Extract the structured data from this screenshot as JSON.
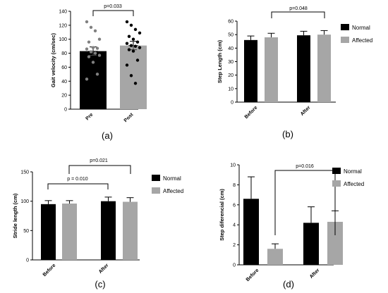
{
  "chart_data": [
    {
      "panel": "(a)",
      "type": "bar",
      "ylabel": "Gait velocity (cm/sec)",
      "ylim": [
        0,
        140
      ],
      "yticks": [
        "0",
        "20",
        "40",
        "60",
        "80",
        "100",
        "120",
        "140"
      ],
      "categories": [
        "Pre",
        "Post"
      ],
      "values": [
        83,
        91
      ],
      "errors": [
        6,
        6
      ],
      "bar_colors": [
        "#000000",
        "#a6a6a6"
      ],
      "points": [
        [
          125,
          117,
          112,
          100,
          96,
          88,
          87,
          86,
          82,
          80,
          77,
          75,
          67,
          50,
          43
        ],
        [
          125,
          120,
          114,
          109,
          104,
          100,
          96,
          94,
          91,
          90,
          88,
          85,
          83,
          70,
          63,
          48,
          37
        ]
      ],
      "point_colors": [
        "#808080",
        "#000000"
      ],
      "annotations": [
        {
          "text": "p=0.033",
          "from": "Pre",
          "to": "Post"
        }
      ],
      "legend": null
    },
    {
      "panel": "(b)",
      "type": "bar",
      "ylabel": "Step Length (cm)",
      "ylim": [
        0,
        60
      ],
      "yticks": [
        "0",
        "10",
        "20",
        "30",
        "40",
        "50",
        "60"
      ],
      "categories": [
        "Before",
        "After"
      ],
      "series": [
        {
          "name": "Normal",
          "color": "#000000",
          "values": [
            46,
            49.5
          ],
          "errors": [
            3,
            3
          ]
        },
        {
          "name": "Affected",
          "color": "#a6a6a6",
          "values": [
            48,
            50
          ],
          "errors": [
            3,
            3
          ]
        }
      ],
      "annotations": [
        {
          "text": "p=0.048",
          "from": "Before Affected",
          "to": "After Affected"
        }
      ],
      "legend": "right"
    },
    {
      "panel": "(c)",
      "type": "bar",
      "ylabel": "Stride length (cm)",
      "ylim": [
        0,
        150
      ],
      "yticks": [
        "0",
        "50",
        "100",
        "150"
      ],
      "categories": [
        "Before",
        "After"
      ],
      "series": [
        {
          "name": "Normal",
          "color": "#000000",
          "values": [
            95,
            100
          ],
          "errors": [
            6,
            7
          ]
        },
        {
          "name": "Affected",
          "color": "#a6a6a6",
          "values": [
            96,
            99
          ],
          "errors": [
            5,
            7
          ]
        }
      ],
      "annotations": [
        {
          "text": "p = 0.010",
          "from": "Before Normal",
          "to": "After Normal"
        },
        {
          "text": "p=0.021",
          "from": "Before Normal",
          "to": "After Affected"
        }
      ],
      "legend": "right"
    },
    {
      "panel": "(d)",
      "type": "bar",
      "ylabel": "Step diferencial  (cm)",
      "ylim": [
        0,
        10
      ],
      "yticks": [
        "0",
        "2",
        "4",
        "6",
        "8",
        "10"
      ],
      "categories": [
        "Before",
        "After"
      ],
      "series": [
        {
          "name": "Normal",
          "color": "#000000",
          "values": [
            6.6,
            4.2
          ],
          "errors": [
            2.2,
            1.6
          ]
        },
        {
          "name": "Affected",
          "color": "#a6a6a6",
          "values": [
            1.6,
            4.3
          ],
          "errors": [
            0.5,
            1.1
          ]
        }
      ],
      "annotations": [
        {
          "text": "p=0.016",
          "from": "Before Affected",
          "to": "After Affected"
        }
      ],
      "legend": "right"
    }
  ]
}
